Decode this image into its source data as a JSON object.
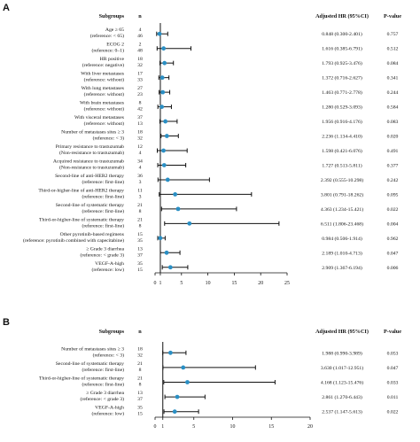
{
  "chart_data": [
    {
      "type": "forest",
      "panel": "A",
      "columns": {
        "subgroup": "Subgroups",
        "n": "n",
        "hr": "Adjusted HR (95%CI)",
        "p": "P-value"
      },
      "xlim": [
        0,
        25
      ],
      "xticks": [
        0,
        1,
        5,
        10,
        15,
        20,
        25
      ],
      "reference_line": 1,
      "rows": [
        {
          "label": [
            "Age ≥ 65",
            "(reference: < 65)"
          ],
          "n": [
            "4",
            "46"
          ],
          "hr": 0.848,
          "lo": 0.3,
          "hi": 2.401,
          "hr_text": "0.848 (0.300-2.401)",
          "p": "0.757"
        },
        {
          "label": [
            "ECOG 2",
            "(reference: 0–1)"
          ],
          "n": [
            "2",
            "48"
          ],
          "hr": 1.616,
          "lo": 0.385,
          "hi": 6.791,
          "hr_text": "1.616 (0.385-6.791)",
          "p": "0.512"
        },
        {
          "label": [
            "HR positive",
            "(reference: negative)"
          ],
          "n": [
            "18",
            "32"
          ],
          "hr": 1.793,
          "lo": 0.925,
          "hi": 3.476,
          "hr_text": "1.793 (0.925-3.476)",
          "p": "0.084"
        },
        {
          "label": [
            "With liver metastases",
            "(reference: without)"
          ],
          "n": [
            "17",
            "33"
          ],
          "hr": 1.372,
          "lo": 0.716,
          "hi": 2.627,
          "hr_text": "1.372 (0.716-2.627)",
          "p": "0.341"
        },
        {
          "label": [
            "With lung metastases",
            "(reference: without)"
          ],
          "n": [
            "27",
            "23"
          ],
          "hr": 1.463,
          "lo": 0.771,
          "hi": 2.778,
          "hr_text": "1.463 (0.771-2.778)",
          "p": "0.244"
        },
        {
          "label": [
            "With brain metastases",
            "(reference: without)"
          ],
          "n": [
            "8",
            "42"
          ],
          "hr": 1.28,
          "lo": 0.529,
          "hi": 3.093,
          "hr_text": "1.280 (0.529-3.093)",
          "p": "0.584"
        },
        {
          "label": [
            "With visceral metastases",
            "(reference: without)"
          ],
          "n": [
            "37",
            "13"
          ],
          "hr": 1.956,
          "lo": 0.916,
          "hi": 4.176,
          "hr_text": "1.956 (0.916-4.176)",
          "p": "0.083"
        },
        {
          "label": [
            "Number of metastases sites ≥ 3",
            "(reference: < 3)"
          ],
          "n": [
            "18",
            "32"
          ],
          "hr": 2.236,
          "lo": 1.134,
          "hi": 4.41,
          "hr_text": "2.236 (1.134-4.410)",
          "p": "0.020"
        },
        {
          "label": [
            "Primary resistance to trastuzumab",
            "(Non-resistance to trastuzumab)"
          ],
          "n": [
            "12",
            "4"
          ],
          "hr": 1.598,
          "lo": 0.421,
          "hi": 6.076,
          "hr_text": "1.598 (0.421-6.076)",
          "p": "0.491"
        },
        {
          "label": [
            "Acquired resistance to trastuzumab",
            "(Non-resistance to trastuzumab)"
          ],
          "n": [
            "34",
            "4"
          ],
          "hr": 1.727,
          "lo": 0.513,
          "hi": 5.811,
          "hr_text": "1.727 (0.513-5.811)",
          "p": "0.377"
        },
        {
          "label": [
            "Second-line of anti-HER2 therapy",
            "(reference: first-line)"
          ],
          "n": [
            "36",
            "3"
          ],
          "hr": 2.392,
          "lo": 0.555,
          "hi": 10.298,
          "hr_text": "2.392 (0.555-10.298)",
          "p": "0.242"
        },
        {
          "label": [
            "Third-or-higher-line of anti-HER2 therapy",
            "(reference: first-line)"
          ],
          "n": [
            "11",
            "3"
          ],
          "hr": 3.801,
          "lo": 0.791,
          "hi": 18.262,
          "hr_text": "3.801 (0.791-18.262)",
          "p": "0.095"
        },
        {
          "label": [
            "Second-line of systematic therapy",
            "(reference: first-line)"
          ],
          "n": [
            "21",
            "8"
          ],
          "hr": 4.363,
          "lo": 1.234,
          "hi": 15.421,
          "hr_text": "4.363 (1.234-15.421)",
          "p": "0.022"
        },
        {
          "label": [
            "Third-or-higher-line of systematic therapy",
            "(reference: first-line)"
          ],
          "n": [
            "21",
            "8"
          ],
          "hr": 6.511,
          "lo": 1.806,
          "hi": 23.468,
          "hr_text": "6.511 (1.806-23.468)",
          "p": "0.004"
        },
        {
          "label": [
            "Other pyrotinib-based regimens",
            "(reference: pyrotinib combined with capecitabine)"
          ],
          "n": [
            "15",
            "35"
          ],
          "hr": 0.984,
          "lo": 0.506,
          "hi": 1.914,
          "hr_text": "0.984 (0.506-1.914)",
          "p": "0.962"
        },
        {
          "label": [
            "≥ Grade 3 diarrhea",
            "(reference: < grade 3)"
          ],
          "n": [
            "13",
            "37"
          ],
          "hr": 2.189,
          "lo": 1.01,
          "hi": 4.713,
          "hr_text": "2.189 (1.010-4.713)",
          "p": "0.047"
        },
        {
          "label": [
            "VEGF-A-high",
            "(reference: low)"
          ],
          "n": [
            "35",
            "15"
          ],
          "hr": 2.909,
          "lo": 1.367,
          "hi": 6.194,
          "hr_text": "2.909 (1.367-6.194)",
          "p": "0.006"
        }
      ]
    },
    {
      "type": "forest",
      "panel": "B",
      "columns": {
        "subgroup": "Subgroups",
        "n": "n",
        "hr": "Adjusted HR (95%CI)",
        "p": "P-value"
      },
      "xlim": [
        0,
        20
      ],
      "xticks": [
        0,
        1,
        5,
        10,
        15,
        20
      ],
      "reference_line": 1,
      "rows": [
        {
          "label": [
            "Number of metastases sites ≥ 3",
            "(reference: < 3)"
          ],
          "n": [
            "18",
            "32"
          ],
          "hr": 1.988,
          "lo": 0.99,
          "hi": 3.989,
          "hr_text": "1.988 (0.990-3.989)",
          "p": "0.053"
        },
        {
          "label": [
            "Second-line of systematic therapy",
            "(reference: first-line)"
          ],
          "n": [
            "21",
            "8"
          ],
          "hr": 3.63,
          "lo": 1.017,
          "hi": 12.951,
          "hr_text": "3.630 (1.017-12.951)",
          "p": "0.047"
        },
        {
          "label": [
            "Third-or-higher-line of systematic therapy",
            "(reference: first-line)"
          ],
          "n": [
            "21",
            "8"
          ],
          "hr": 4.168,
          "lo": 1.123,
          "hi": 15.476,
          "hr_text": "4.168 (1.123-15.476)",
          "p": "0.033"
        },
        {
          "label": [
            "≥ Grade 3 diarrhea",
            "(reference: < grade 3)"
          ],
          "n": [
            "13",
            "37"
          ],
          "hr": 2.861,
          "lo": 1.27,
          "hi": 6.443,
          "hr_text": "2.861 (1.270-6.443)",
          "p": "0.011"
        },
        {
          "label": [
            "VEGF-A-high",
            "(reference: low)"
          ],
          "n": [
            "35",
            "15"
          ],
          "hr": 2.537,
          "lo": 1.147,
          "hi": 5.613,
          "hr_text": "2.537 (1.147-5.613)",
          "p": "0.022"
        }
      ]
    }
  ],
  "style": {
    "point_color": "#2a8fc4",
    "line_color": "#111111"
  }
}
